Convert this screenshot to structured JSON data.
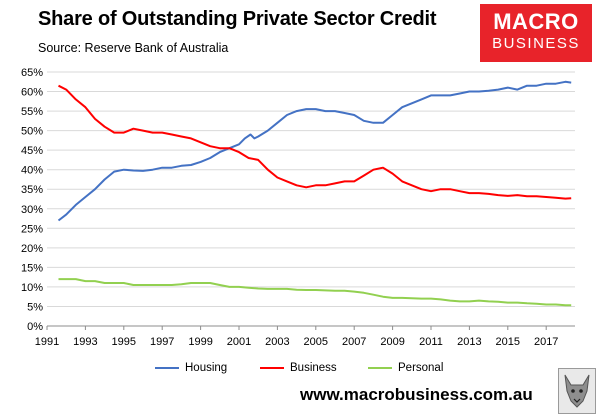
{
  "header": {
    "title": "Share of Outstanding Private Sector Credit",
    "subtitle": "Source: Reserve Bank of Australia"
  },
  "logo": {
    "line1": "MACRO",
    "line2": "BUSINESS"
  },
  "footer": {
    "website": "www.macrobusiness.com.au"
  },
  "mascot": {
    "icon": "wolf-mascot-icon"
  },
  "colors": {
    "housing": "#4472c4",
    "business": "#ff0000",
    "personal": "#92d050",
    "brand": "#e8232a"
  },
  "chart_data": {
    "type": "line",
    "title": "Share of Outstanding Private Sector Credit",
    "xlabel": "",
    "ylabel": "",
    "xlim": [
      1991,
      2018.5
    ],
    "ylim": [
      0,
      65
    ],
    "x_ticks": [
      1991,
      1993,
      1995,
      1997,
      1999,
      2001,
      2003,
      2005,
      2007,
      2009,
      2011,
      2013,
      2015,
      2017
    ],
    "y_ticks": [
      0,
      5,
      10,
      15,
      20,
      25,
      30,
      35,
      40,
      45,
      50,
      55,
      60,
      65
    ],
    "y_tick_labels": [
      "0%",
      "5%",
      "10%",
      "15%",
      "20%",
      "25%",
      "30%",
      "35%",
      "40%",
      "45%",
      "50%",
      "55%",
      "60%",
      "65%"
    ],
    "grid": "horizontal",
    "legend_position": "bottom",
    "series": [
      {
        "name": "Housing",
        "color": "#4472c4",
        "points": [
          [
            1991.6,
            27
          ],
          [
            1992,
            28.5
          ],
          [
            1992.5,
            31
          ],
          [
            1993,
            33
          ],
          [
            1993.5,
            35
          ],
          [
            1994,
            37.5
          ],
          [
            1994.5,
            39.5
          ],
          [
            1995,
            40
          ],
          [
            1995.5,
            39.8
          ],
          [
            1996,
            39.7
          ],
          [
            1996.5,
            40
          ],
          [
            1997,
            40.5
          ],
          [
            1997.5,
            40.5
          ],
          [
            1998,
            41
          ],
          [
            1998.5,
            41.2
          ],
          [
            1999,
            42
          ],
          [
            1999.5,
            43
          ],
          [
            2000,
            44.5
          ],
          [
            2000.5,
            45.5
          ],
          [
            2001,
            46.5
          ],
          [
            2001.3,
            48
          ],
          [
            2001.6,
            49
          ],
          [
            2001.8,
            48
          ],
          [
            2002,
            48.5
          ],
          [
            2002.5,
            50
          ],
          [
            2003,
            52
          ],
          [
            2003.5,
            54
          ],
          [
            2004,
            55
          ],
          [
            2004.5,
            55.5
          ],
          [
            2005,
            55.5
          ],
          [
            2005.5,
            55
          ],
          [
            2006,
            55
          ],
          [
            2006.5,
            54.5
          ],
          [
            2007,
            54
          ],
          [
            2007.5,
            52.5
          ],
          [
            2008,
            52
          ],
          [
            2008.5,
            52
          ],
          [
            2009,
            54
          ],
          [
            2009.5,
            56
          ],
          [
            2010,
            57
          ],
          [
            2010.5,
            58
          ],
          [
            2011,
            59
          ],
          [
            2011.5,
            59
          ],
          [
            2012,
            59
          ],
          [
            2012.5,
            59.5
          ],
          [
            2013,
            60
          ],
          [
            2013.5,
            60
          ],
          [
            2014,
            60.2
          ],
          [
            2014.5,
            60.5
          ],
          [
            2015,
            61
          ],
          [
            2015.5,
            60.5
          ],
          [
            2016,
            61.5
          ],
          [
            2016.5,
            61.5
          ],
          [
            2017,
            62
          ],
          [
            2017.5,
            62
          ],
          [
            2018,
            62.5
          ],
          [
            2018.3,
            62.3
          ]
        ]
      },
      {
        "name": "Business",
        "color": "#ff0000",
        "points": [
          [
            1991.6,
            61.5
          ],
          [
            1992,
            60.5
          ],
          [
            1992.5,
            58
          ],
          [
            1993,
            56
          ],
          [
            1993.5,
            53
          ],
          [
            1994,
            51
          ],
          [
            1994.5,
            49.5
          ],
          [
            1995,
            49.5
          ],
          [
            1995.5,
            50.5
          ],
          [
            1996,
            50
          ],
          [
            1996.5,
            49.5
          ],
          [
            1997,
            49.5
          ],
          [
            1997.5,
            49
          ],
          [
            1998,
            48.5
          ],
          [
            1998.5,
            48
          ],
          [
            1999,
            47
          ],
          [
            1999.5,
            46
          ],
          [
            2000,
            45.5
          ],
          [
            2000.5,
            45.5
          ],
          [
            2001,
            44.5
          ],
          [
            2001.5,
            43
          ],
          [
            2002,
            42.5
          ],
          [
            2002.5,
            40
          ],
          [
            2003,
            38
          ],
          [
            2003.5,
            37
          ],
          [
            2004,
            36
          ],
          [
            2004.5,
            35.5
          ],
          [
            2005,
            36
          ],
          [
            2005.5,
            36
          ],
          [
            2006,
            36.5
          ],
          [
            2006.5,
            37
          ],
          [
            2007,
            37
          ],
          [
            2007.5,
            38.5
          ],
          [
            2008,
            40
          ],
          [
            2008.5,
            40.5
          ],
          [
            2009,
            39
          ],
          [
            2009.5,
            37
          ],
          [
            2010,
            36
          ],
          [
            2010.5,
            35
          ],
          [
            2011,
            34.5
          ],
          [
            2011.5,
            35
          ],
          [
            2012,
            35
          ],
          [
            2012.5,
            34.5
          ],
          [
            2013,
            34
          ],
          [
            2013.5,
            34
          ],
          [
            2014,
            33.8
          ],
          [
            2014.5,
            33.5
          ],
          [
            2015,
            33.3
          ],
          [
            2015.5,
            33.5
          ],
          [
            2016,
            33.2
          ],
          [
            2016.5,
            33.2
          ],
          [
            2017,
            33
          ],
          [
            2017.5,
            32.8
          ],
          [
            2018,
            32.6
          ],
          [
            2018.3,
            32.7
          ]
        ]
      },
      {
        "name": "Personal",
        "color": "#92d050",
        "points": [
          [
            1991.6,
            12
          ],
          [
            1992,
            12
          ],
          [
            1992.5,
            12
          ],
          [
            1993,
            11.5
          ],
          [
            1993.5,
            11.5
          ],
          [
            1994,
            11
          ],
          [
            1994.5,
            11
          ],
          [
            1995,
            11
          ],
          [
            1995.5,
            10.5
          ],
          [
            1996,
            10.5
          ],
          [
            1996.5,
            10.5
          ],
          [
            1997,
            10.5
          ],
          [
            1997.5,
            10.5
          ],
          [
            1998,
            10.7
          ],
          [
            1998.5,
            11
          ],
          [
            1999,
            11
          ],
          [
            1999.5,
            11
          ],
          [
            2000,
            10.5
          ],
          [
            2000.5,
            10
          ],
          [
            2001,
            10
          ],
          [
            2001.5,
            9.8
          ],
          [
            2002,
            9.6
          ],
          [
            2002.5,
            9.5
          ],
          [
            2003,
            9.5
          ],
          [
            2003.5,
            9.5
          ],
          [
            2004,
            9.3
          ],
          [
            2004.5,
            9.2
          ],
          [
            2005,
            9.2
          ],
          [
            2005.5,
            9.1
          ],
          [
            2006,
            9
          ],
          [
            2006.5,
            9
          ],
          [
            2007,
            8.8
          ],
          [
            2007.5,
            8.5
          ],
          [
            2008,
            8
          ],
          [
            2008.5,
            7.5
          ],
          [
            2009,
            7.2
          ],
          [
            2009.5,
            7.2
          ],
          [
            2010,
            7.1
          ],
          [
            2010.5,
            7
          ],
          [
            2011,
            7
          ],
          [
            2011.5,
            6.8
          ],
          [
            2012,
            6.5
          ],
          [
            2012.5,
            6.3
          ],
          [
            2013,
            6.3
          ],
          [
            2013.5,
            6.5
          ],
          [
            2014,
            6.3
          ],
          [
            2014.5,
            6.2
          ],
          [
            2015,
            6
          ],
          [
            2015.5,
            6
          ],
          [
            2016,
            5.8
          ],
          [
            2016.5,
            5.7
          ],
          [
            2017,
            5.5
          ],
          [
            2017.5,
            5.5
          ],
          [
            2018,
            5.3
          ],
          [
            2018.3,
            5.3
          ]
        ]
      }
    ]
  }
}
